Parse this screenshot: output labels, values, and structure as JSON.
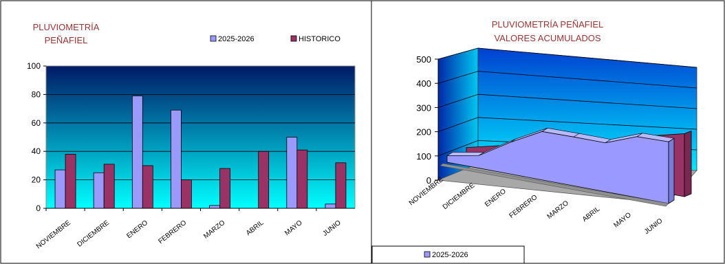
{
  "colors": {
    "series_2025": "#9999ff",
    "series_hist": "#993366",
    "title_red": "#993333",
    "grad_top": "#001a66",
    "grad_bottom": "#00ffff"
  },
  "chart_data": [
    {
      "type": "bar",
      "title_lines": [
        "PLUVIOMETRÍA",
        "PEÑAFIEL"
      ],
      "categories": [
        "NOVIEMBRE",
        "DICIEMBRE",
        "ENERO",
        "FEBRERO",
        "MARZO",
        "ABRIL",
        "MAYO",
        "JUNIO"
      ],
      "series": [
        {
          "name": "2025-2026",
          "values": [
            27,
            25,
            79,
            69,
            2,
            0,
            50,
            3
          ]
        },
        {
          "name": "HISTORICO",
          "values": [
            38,
            31,
            30,
            20,
            28,
            40,
            41,
            32
          ]
        }
      ],
      "ylim": [
        0,
        100
      ],
      "yticks": [
        "0",
        "20",
        "40",
        "60",
        "80",
        "100"
      ],
      "grid": true,
      "legend": "top-right"
    },
    {
      "type": "area",
      "title_lines": [
        "PLUVIOMETRÍA PEÑAFIEL",
        "VALORES ACUMULADOS"
      ],
      "categories": [
        "NOVIEMBRE",
        "DICIEMBRE",
        "ENERO",
        "FEBRERO",
        "MARZO",
        "ABRIL",
        "MAYO",
        "JUNIO"
      ],
      "series": [
        {
          "name": "2025-2026",
          "values": [
            27,
            52,
            131,
            200,
            202,
            202,
            252,
            255
          ]
        },
        {
          "name": "HISTORICO",
          "values": [
            38,
            69,
            99,
            119,
            147,
            187,
            228,
            260
          ]
        }
      ],
      "ylim": [
        0,
        500
      ],
      "yticks": [
        "0",
        "100",
        "200",
        "300",
        "400",
        "500"
      ],
      "grid": true,
      "legend": "bottom-left",
      "legend_entries": [
        "2025-2026"
      ]
    }
  ]
}
